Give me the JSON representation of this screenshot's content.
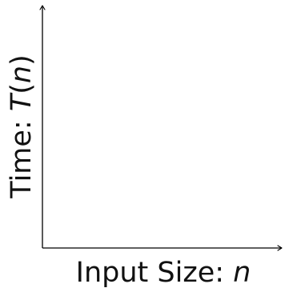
{
  "chart_data": {
    "type": "line",
    "title": "",
    "x": [],
    "series": [],
    "xlabel": {
      "prefix": "Input Size: ",
      "variable": "n"
    },
    "ylabel": {
      "prefix": "Time: ",
      "function": "T",
      "open": "(",
      "variable": "n",
      "close": ")"
    },
    "grid": false,
    "ticks": false,
    "legend": "none"
  }
}
